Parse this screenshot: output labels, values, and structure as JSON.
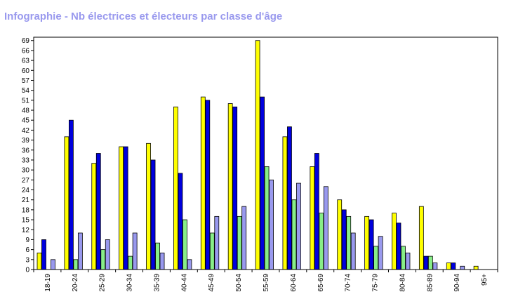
{
  "chart_data": {
    "type": "bar",
    "title": "Infographie - Nb électrices et électeurs par classe d'âge",
    "categories": [
      "18-19",
      "20-24",
      "25-29",
      "30-34",
      "35-39",
      "40-44",
      "45-49",
      "50-54",
      "55-59",
      "60-64",
      "65-69",
      "70-74",
      "75-79",
      "80-84",
      "85-89",
      "90-94",
      "95+"
    ],
    "series": [
      {
        "color": "#ffff00",
        "values": [
          5,
          40,
          32,
          37,
          38,
          49,
          52,
          50,
          69,
          40,
          31,
          21,
          16,
          17,
          19,
          2,
          1
        ]
      },
      {
        "color": "#0000dd",
        "values": [
          9,
          45,
          35,
          37,
          33,
          29,
          51,
          49,
          52,
          43,
          35,
          18,
          15,
          14,
          4,
          2,
          0
        ]
      },
      {
        "color": "#88ee88",
        "values": [
          0,
          3,
          6,
          4,
          8,
          15,
          11,
          16,
          31,
          21,
          17,
          16,
          7,
          7,
          4,
          0,
          0
        ]
      },
      {
        "color": "#9999ee",
        "values": [
          3,
          11,
          9,
          11,
          5,
          3,
          16,
          19,
          27,
          26,
          25,
          11,
          10,
          5,
          2,
          1,
          0
        ]
      }
    ],
    "ylim": [
      0,
      70
    ],
    "yticks": [
      0,
      3,
      6,
      9,
      12,
      15,
      18,
      21,
      24,
      27,
      30,
      33,
      36,
      39,
      42,
      45,
      48,
      51,
      54,
      57,
      60,
      63,
      66,
      69
    ],
    "grid": false,
    "xlabel": "",
    "ylabel": ""
  }
}
